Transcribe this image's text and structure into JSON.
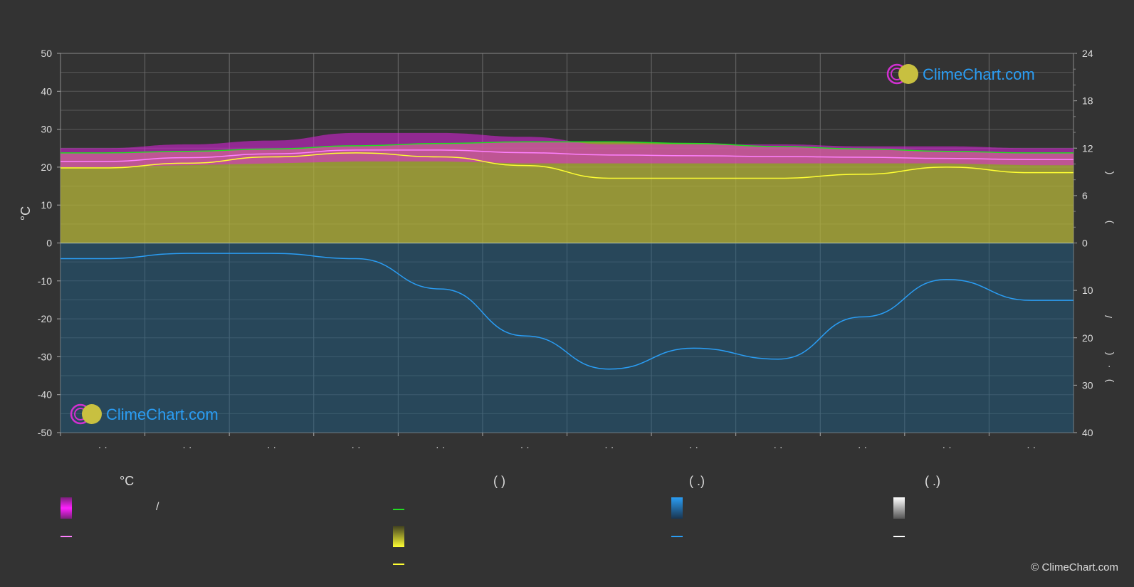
{
  "logo": {
    "text": "ClimeChart.com"
  },
  "copyright": "© ClimeChart.com",
  "colors": {
    "background": "#333333",
    "grid": "#5a5a5a",
    "zero_line": "#cfcfcf",
    "temp_range": "#e020e0",
    "avg_temp": "#ff80ff",
    "daylight": "#22dd22",
    "sunshine": "#ffff33",
    "sunshine_fill": "#b5b53a",
    "precip": "#2a9df4",
    "precip_fill": "#1a5f8a",
    "logo": "#2a9df4"
  },
  "chart_data": {
    "type": "area",
    "ylabel_left": "°C",
    "left_axis": {
      "ylim": [
        -50,
        50
      ],
      "ticks": [
        "50",
        "40",
        "30",
        "20",
        "10",
        "0",
        "-10",
        "-20",
        "-30",
        "-40",
        "-50"
      ]
    },
    "right_axis_top": {
      "ylim": [
        0,
        24
      ],
      "ticks": [
        "24",
        "18",
        "12",
        "6",
        "0"
      ]
    },
    "right_axis_bottom": {
      "ylim": [
        0,
        40
      ],
      "ticks": [
        "0",
        "10",
        "20",
        "30",
        "40"
      ]
    },
    "right_labels": [
      "(",
      ")",
      "/",
      "(",
      "·",
      ")"
    ],
    "month_labels": [
      "· ·",
      "· ·",
      "· ·",
      "· ·",
      "· ·",
      "· ·",
      "· ·",
      "· ·",
      "· ·",
      "· ·",
      "· ·",
      "· ·"
    ],
    "grid": true,
    "series": [
      {
        "key": "daylight",
        "axis": "right_top",
        "values": [
          11.4,
          11.6,
          11.9,
          12.3,
          12.6,
          12.8,
          12.8,
          12.6,
          12.2,
          11.9,
          11.6,
          11.4
        ]
      },
      {
        "key": "avg_temp",
        "axis": "left",
        "values": [
          21.5,
          22.5,
          23.5,
          24.5,
          24.5,
          23.8,
          23.2,
          23.0,
          22.8,
          22.6,
          22.3,
          22.0
        ]
      },
      {
        "key": "sunshine",
        "axis": "right_top",
        "values": [
          9.5,
          10.1,
          10.9,
          11.4,
          10.9,
          9.8,
          8.2,
          8.2,
          8.2,
          8.7,
          9.6,
          8.9
        ]
      },
      {
        "key": "precip",
        "axis": "right_bottom",
        "values": [
          3.3,
          2.2,
          2.2,
          3.3,
          9.7,
          19.6,
          26.6,
          22.2,
          24.5,
          15.6,
          7.7,
          12.1
        ]
      }
    ],
    "temp_range_band": {
      "min": [
        20,
        20.5,
        21,
        21.5,
        21.5,
        21,
        21,
        21,
        21,
        21,
        21,
        20.5
      ],
      "max": [
        25,
        26,
        27,
        29,
        29,
        28,
        26,
        26,
        26,
        25.5,
        25.5,
        25
      ]
    }
  },
  "legend": {
    "headers": [
      "°C",
      "(          )",
      "(    .)",
      "(    .)"
    ],
    "slash": "/"
  }
}
